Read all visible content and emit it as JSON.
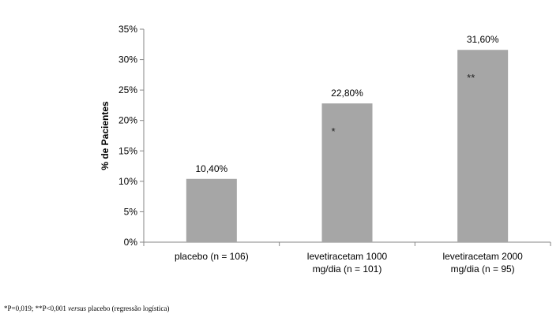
{
  "chart_data": {
    "type": "bar",
    "ylabel": "% de Pacientes",
    "xlabel": "",
    "ylim": [
      0,
      35
    ],
    "yticks": [
      0,
      5,
      10,
      15,
      20,
      25,
      30,
      35
    ],
    "ytick_labels": [
      "0%",
      "5%",
      "10%",
      "15%",
      "20%",
      "25%",
      "30%",
      "35%"
    ],
    "categories": [
      [
        "placebo (n = 106)"
      ],
      [
        "levetiracetam 1000",
        "mg/dia (n = 101)"
      ],
      [
        "levetiracetam 2000",
        "mg/dia (n = 95)"
      ]
    ],
    "values": [
      10.4,
      22.8,
      31.6
    ],
    "data_labels": [
      "10,40%",
      "22,80%",
      "31,60%"
    ],
    "significance_marks": [
      "",
      "*",
      "**"
    ],
    "bar_color": "#a6a6a6",
    "grid": false,
    "legend": "none"
  },
  "footnote": {
    "prefix": "*P=0,019; **P<0,001 ",
    "italic": "versus",
    "suffix": " placebo (regressão logística)"
  }
}
